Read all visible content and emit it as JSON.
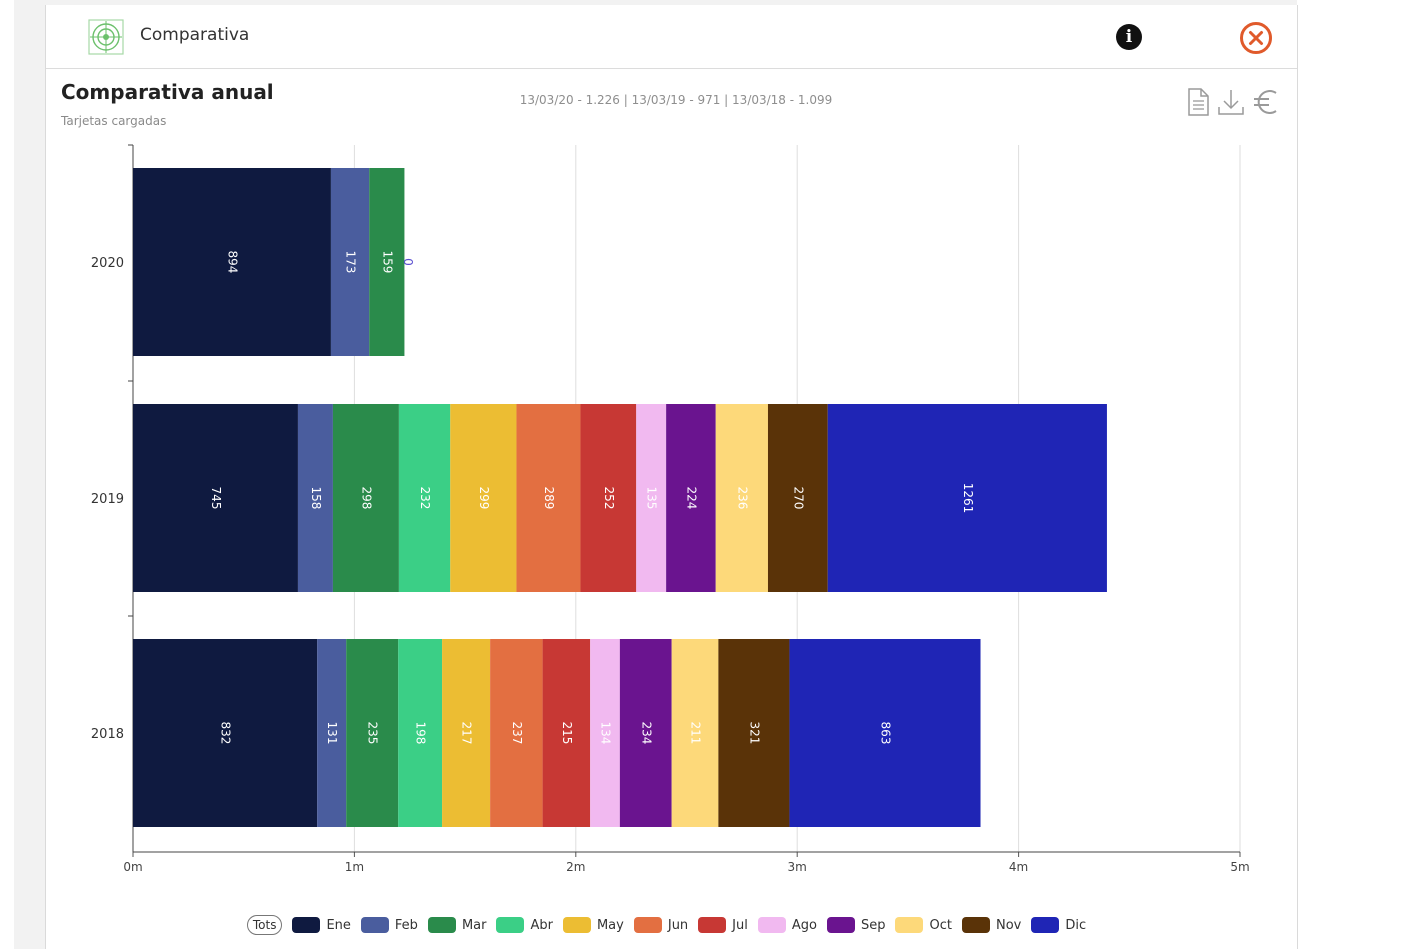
{
  "header": {
    "title": "Comparativa"
  },
  "chart_header": {
    "title": "Comparativa anual",
    "subtitle": "Tarjetas cargadas",
    "summary": "13/03/20 - 1.226 | 13/03/19 - 971 | 13/03/18 - 1.099"
  },
  "icons": {
    "logo": "target-logo-icon",
    "info": "info-icon",
    "close": "close-circle-icon",
    "document": "document-icon",
    "download": "download-icon",
    "currency": "euro-icon"
  },
  "legend": {
    "tots_label": "Tots"
  },
  "colors": {
    "accent_close": "#e05a2b",
    "Ene": "#0f1a40",
    "Feb": "#4a5d9e",
    "Mar": "#2a8b4b",
    "Abr": "#3bcf86",
    "May": "#ecbd33",
    "Jun": "#e36f41",
    "Jul": "#c73834",
    "Ago": "#f1b9f0",
    "Sep": "#6a148f",
    "Oct": "#fdd97a",
    "Nov": "#5a3308",
    "Dic": "#1f25b5"
  },
  "chart_data": {
    "type": "bar",
    "orientation": "horizontal",
    "stacked": true,
    "categories": [
      "2020",
      "2019",
      "2018"
    ],
    "x_ticks": [
      "0m",
      "1m",
      "2m",
      "3m",
      "4m",
      "5m"
    ],
    "xlim": [
      0,
      5
    ],
    "x_unit": "m",
    "grid": true,
    "legend_position": "bottom",
    "series": [
      {
        "name": "Ene",
        "values": [
          0.894,
          0.745,
          0.832
        ],
        "labels": [
          "894",
          "745",
          "832"
        ]
      },
      {
        "name": "Feb",
        "values": [
          0.173,
          0.158,
          0.131
        ],
        "labels": [
          "173",
          "158",
          "131"
        ]
      },
      {
        "name": "Mar",
        "values": [
          0.159,
          0.298,
          0.235
        ],
        "labels": [
          "159",
          "298",
          "235"
        ]
      },
      {
        "name": "Abr",
        "values": [
          0,
          0.232,
          0.198
        ],
        "labels": [
          "0",
          "232",
          "198"
        ]
      },
      {
        "name": "May",
        "values": [
          0,
          0.299,
          0.217
        ],
        "labels": [
          "",
          "299",
          "217"
        ]
      },
      {
        "name": "Jun",
        "values": [
          0,
          0.289,
          0.237
        ],
        "labels": [
          "",
          "289",
          "237"
        ]
      },
      {
        "name": "Jul",
        "values": [
          0,
          0.252,
          0.215
        ],
        "labels": [
          "",
          "252",
          "215"
        ]
      },
      {
        "name": "Ago",
        "values": [
          0,
          0.135,
          0.134
        ],
        "labels": [
          "",
          "135",
          "134"
        ]
      },
      {
        "name": "Sep",
        "values": [
          0,
          0.224,
          0.234
        ],
        "labels": [
          "",
          "224",
          "234"
        ]
      },
      {
        "name": "Oct",
        "values": [
          0,
          0.236,
          0.211
        ],
        "labels": [
          "",
          "236",
          "211"
        ]
      },
      {
        "name": "Nov",
        "values": [
          0,
          0.27,
          0.321
        ],
        "labels": [
          "",
          "270",
          "321"
        ]
      },
      {
        "name": "Dic",
        "values": [
          0,
          1.261,
          0.863
        ],
        "labels": [
          "",
          "1261",
          "863"
        ]
      }
    ]
  }
}
